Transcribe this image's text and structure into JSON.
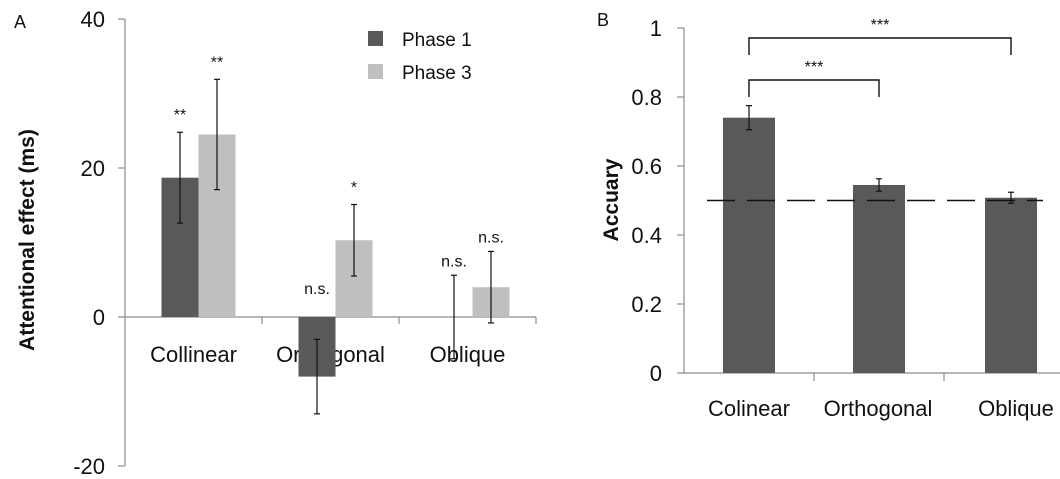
{
  "chart_data": [
    {
      "panel": "A",
      "type": "bar",
      "ylabel": "Attentional effect (ms)",
      "xlabel": "",
      "ylim": [
        -20,
        40
      ],
      "yticks": [
        -20,
        0,
        20,
        40
      ],
      "categories": [
        "Collinear",
        "Orthogonal",
        "Oblique"
      ],
      "series": [
        {
          "name": "Phase 1",
          "color": "#595959",
          "values": [
            18.7,
            -8.0,
            0
          ],
          "errors": [
            6.1,
            5.0,
            5.6
          ],
          "significance": [
            "**",
            "n.s.",
            "n.s."
          ]
        },
        {
          "name": "Phase 3",
          "color": "#bfbfbf",
          "values": [
            24.5,
            10.3,
            4.0
          ],
          "errors": [
            7.4,
            4.8,
            4.8
          ],
          "significance": [
            "**",
            "*",
            "n.s."
          ]
        }
      ],
      "legend_position": "top-right"
    },
    {
      "panel": "B",
      "type": "bar",
      "ylabel": "Accuary",
      "xlabel": "",
      "ylim": [
        0,
        1
      ],
      "yticks": [
        "0",
        "0.2",
        "0.4",
        "0.6",
        "0.8",
        "1"
      ],
      "categories": [
        "Colinear",
        "Orthogonal",
        "Oblique"
      ],
      "color": "#595959",
      "values": [
        0.74,
        0.545,
        0.508
      ],
      "errors": [
        0.035,
        0.018,
        0.016
      ],
      "reference_line": 0.5,
      "comparisons": [
        {
          "from": "Colinear",
          "to": "Orthogonal",
          "label": "***"
        },
        {
          "from": "Colinear",
          "to": "Oblique",
          "label": "***"
        }
      ]
    }
  ]
}
